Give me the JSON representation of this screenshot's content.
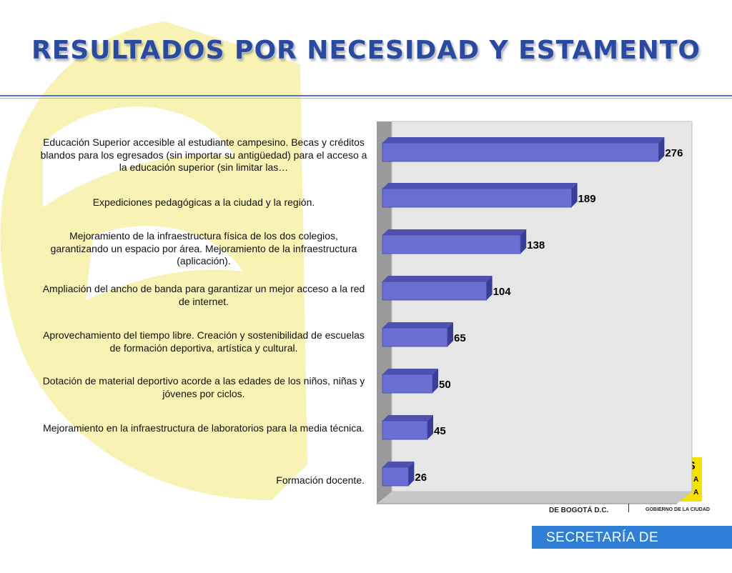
{
  "page": {
    "title": "RESULTADOS POR NECESIDAD Y ESTAMENTO"
  },
  "colors": {
    "bar_fill": "#6b6fd4",
    "bar_top": "#4d51b0",
    "bar_side": "#3a3d96",
    "accent": "#2a4aa0",
    "watermark": "#f8f2b4",
    "footer": "#2f7fd6"
  },
  "chart_data": {
    "type": "bar",
    "orientation": "horizontal",
    "categories": [
      "Educación Superior accesible al estudiante campesino. Becas y créditos blandos para los egresados (sin importar su antigüedad) para el acceso a la educación superior (sin limitar las…",
      "Expediciones pedagógicas a la ciudad y la región.",
      "Mejoramiento de la infraestructura física de los dos colegios, garantizando un espacio por área. Mejoramiento de la infraestructura (aplicación).",
      "Ampliación del ancho de banda para garantizar un mejor acceso a la red de internet.",
      "Aprovechamiento del tiempo libre. Creación y sostenibilidad de escuelas de formación deportiva, artística y cultural.",
      "Dotación de material deportivo acorde a las edades de los niños, niñas y jóvenes por ciclos.",
      "Mejoramiento en la infraestructura de laboratorios para la media técnica.",
      "Formación docente."
    ],
    "values": [
      276,
      189,
      138,
      104,
      65,
      50,
      45,
      26
    ],
    "value_labels": [
      "276",
      "189",
      "138",
      "104",
      "65",
      "50",
      "45",
      "26"
    ],
    "xlim": [
      0,
      300
    ],
    "grid": false,
    "legend": "none",
    "style": "3d"
  },
  "branding": {
    "city": "DE BOGOTÁ D.C.",
    "government": "GOBIERNO DE LA CIUDAD",
    "department": "SECRETARÍA DE EDUCACIÓN",
    "logo_fragment": [
      "S",
      "A",
      "A"
    ]
  }
}
